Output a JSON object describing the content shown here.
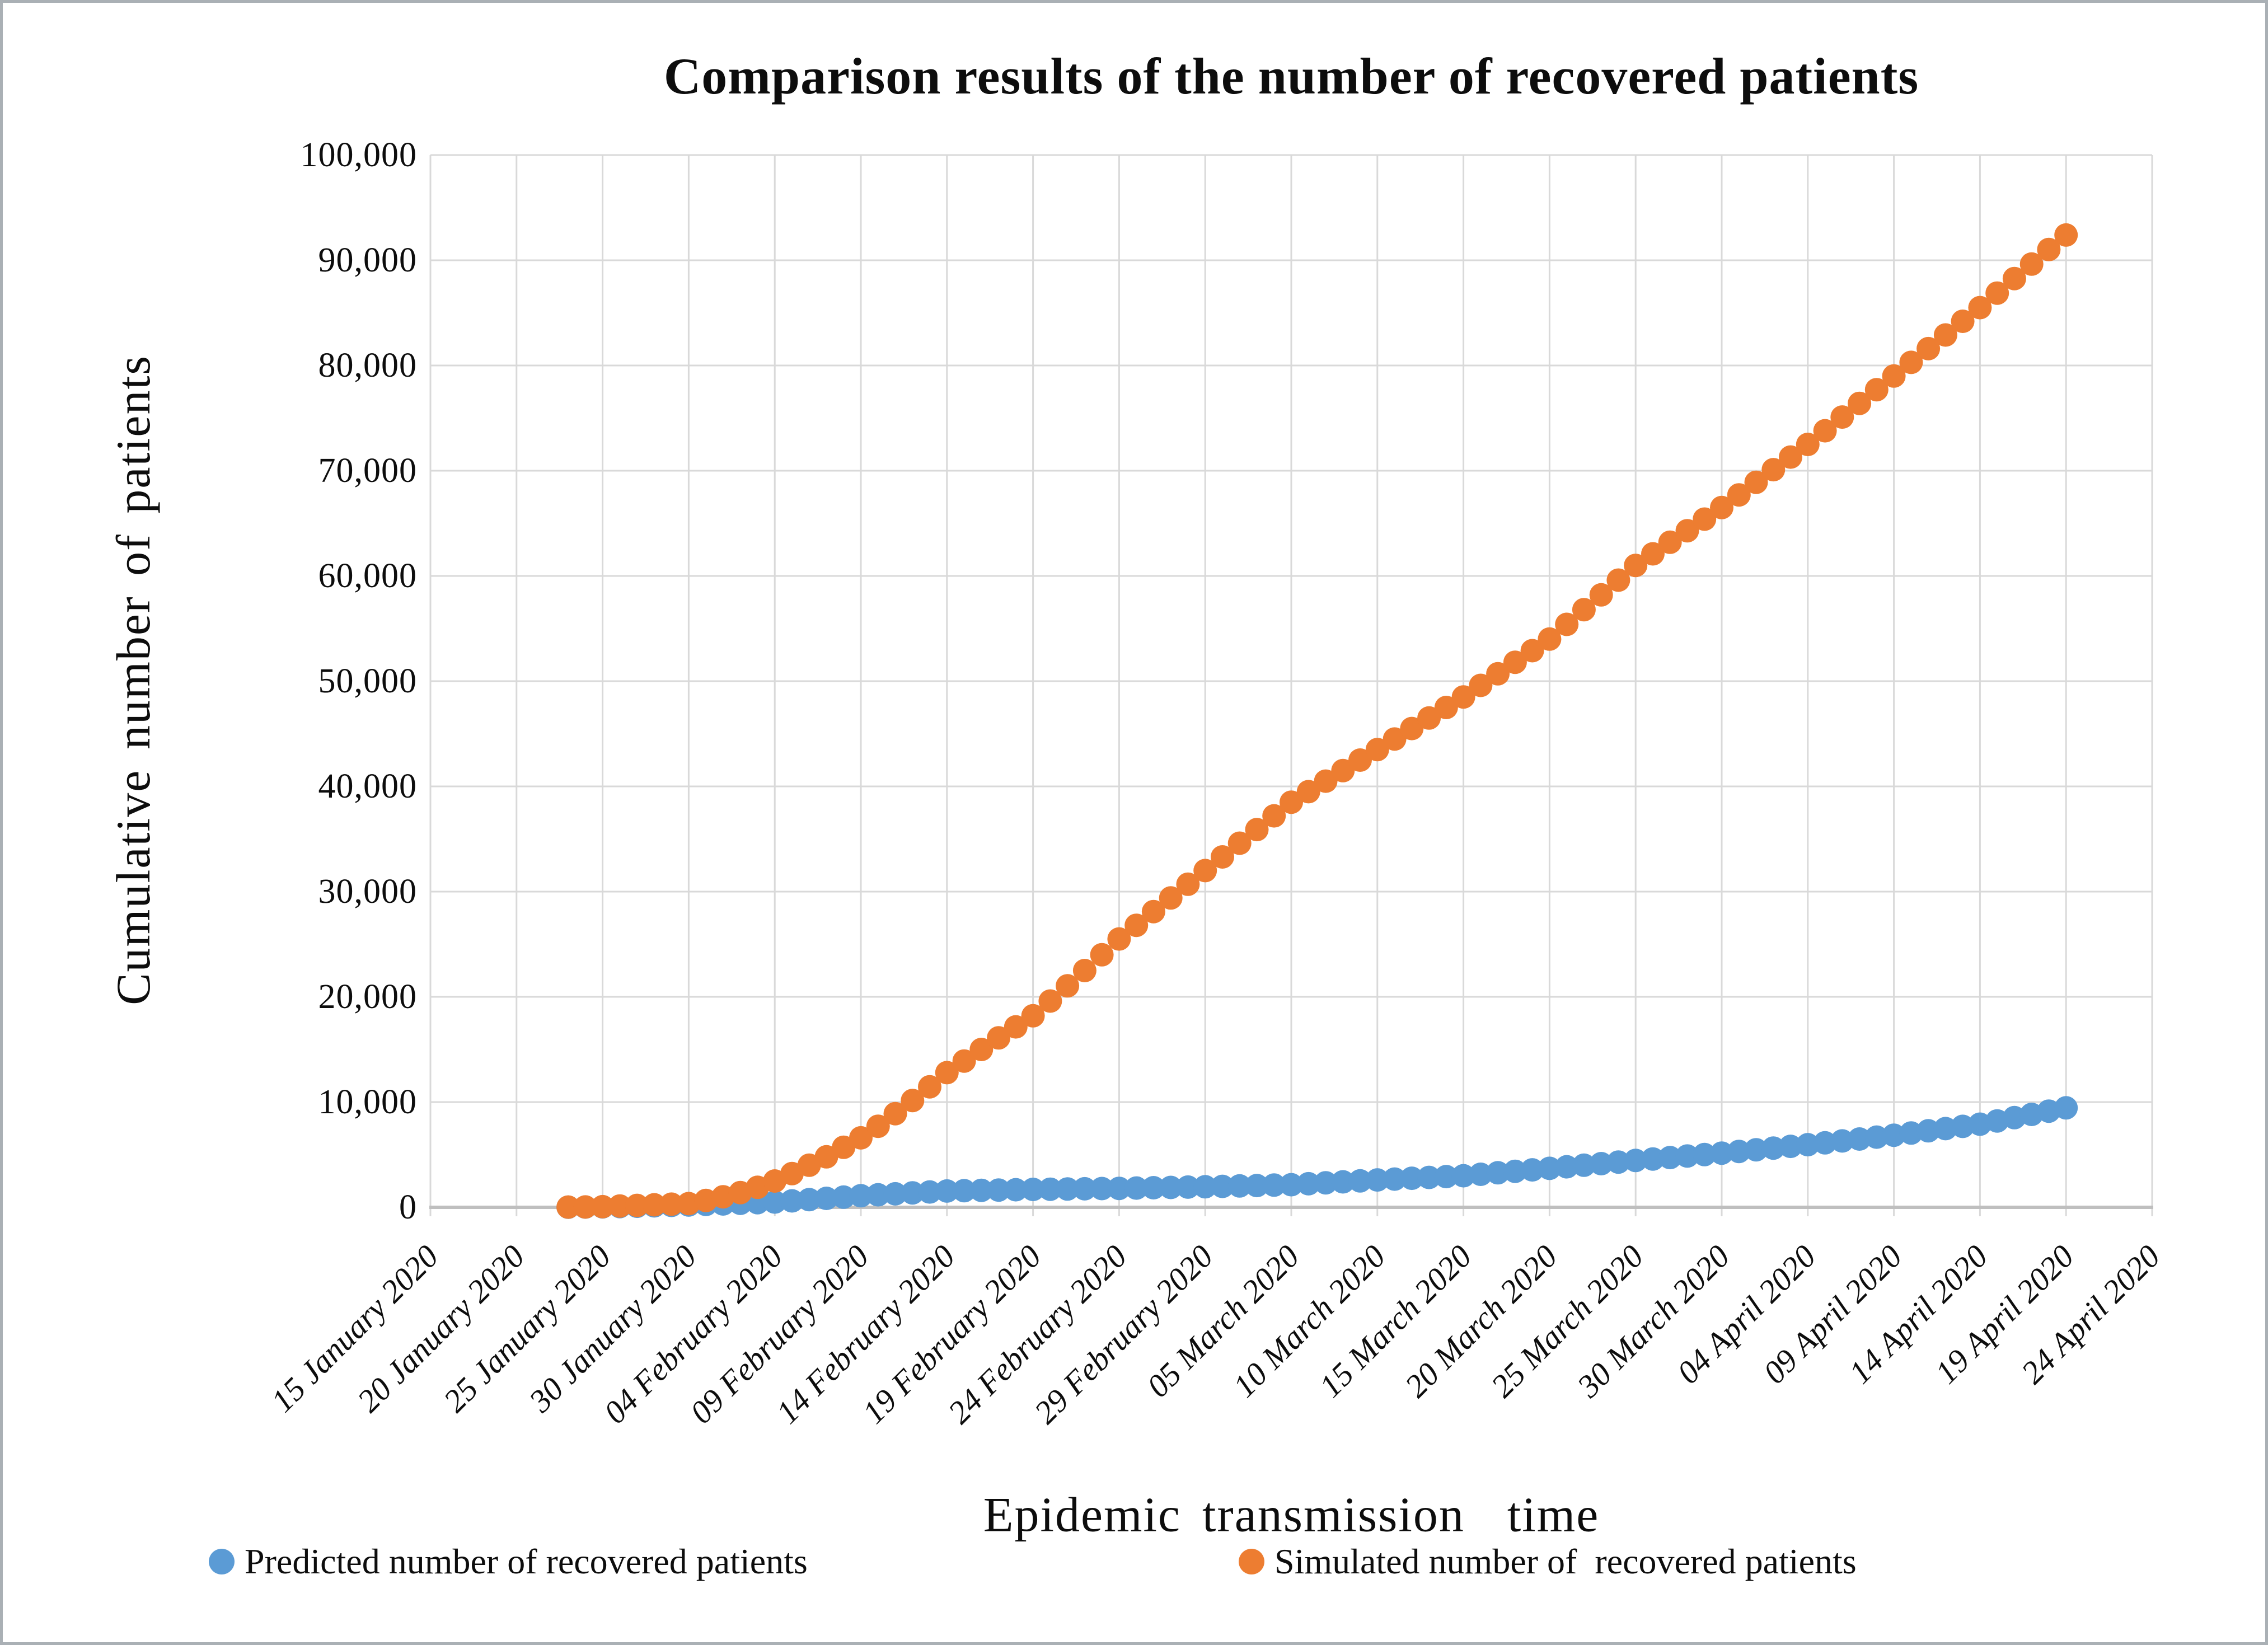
{
  "figure": {
    "title": "Comparison results of the number of recovered patients",
    "x_axis_title": "Epidemic transmission  time",
    "y_axis_title": "Cumulative number of patients"
  },
  "colors": {
    "predicted_blue": "#5B9BD5",
    "simulated_orange": "#ED7D31",
    "gridline": "#D9D9D9",
    "axis_line": "#BFBFBF",
    "text": "#0d0d0d"
  },
  "chart_data": {
    "type": "scatter",
    "title": "Comparison results of the number of recovered patients",
    "xlabel": "Epidemic transmission time",
    "ylabel": "Cumulative number of patients",
    "ylim": [
      0,
      100000
    ],
    "grid": true,
    "legend_position": "bottom",
    "marker": "circle",
    "y_tick_labels": [
      "0",
      "10,000",
      "20,000",
      "30,000",
      "40,000",
      "50,000",
      "60,000",
      "70,000",
      "80,000",
      "90,000",
      "100,000"
    ],
    "x_tick_labels": [
      "15 January 2020",
      "20 January 2020",
      "25 January 2020",
      "30 January 2020",
      "04 February 2020",
      "09 February 2020",
      "14 February 2020",
      "19 February 2020",
      "24 February 2020",
      "29 February 2020",
      "05 March 2020",
      "10 March 2020",
      "15 March 2020",
      "20 March 2020",
      "25 March 2020",
      "30 March 2020",
      "04 April 2020",
      "09 April 2020",
      "14 April 2020",
      "19 April 2020",
      "24 April 2020"
    ],
    "x_tick_interval_days": 5,
    "data_start_offset_days": 8,
    "x_dates": [
      "01-23",
      "01-24",
      "01-25",
      "01-26",
      "01-27",
      "01-28",
      "01-29",
      "01-30",
      "01-31",
      "02-01",
      "02-02",
      "02-03",
      "02-04",
      "02-05",
      "02-06",
      "02-07",
      "02-08",
      "02-09",
      "02-10",
      "02-11",
      "02-12",
      "02-13",
      "02-14",
      "02-15",
      "02-16",
      "02-17",
      "02-18",
      "02-19",
      "02-20",
      "02-21",
      "02-22",
      "02-23",
      "02-24",
      "02-25",
      "02-26",
      "02-27",
      "02-28",
      "02-29",
      "03-01",
      "03-02",
      "03-03",
      "03-04",
      "03-05",
      "03-06",
      "03-07",
      "03-08",
      "03-09",
      "03-10",
      "03-11",
      "03-12",
      "03-13",
      "03-14",
      "03-15",
      "03-16",
      "03-17",
      "03-18",
      "03-19",
      "03-20",
      "03-21",
      "03-22",
      "03-23",
      "03-24",
      "03-25",
      "03-26",
      "03-27",
      "03-28",
      "03-29",
      "03-30",
      "03-31",
      "04-01",
      "04-02",
      "04-03",
      "04-04",
      "04-05",
      "04-06",
      "04-07",
      "04-08",
      "04-09",
      "04-10",
      "04-11",
      "04-12",
      "04-13",
      "04-14",
      "04-15",
      "04-16",
      "04-17",
      "04-18",
      "04-19"
    ],
    "series": [
      {
        "name": "Predicted number of recovered patients",
        "color": "#5B9BD5",
        "values": [
          10,
          20,
          40,
          70,
          100,
          140,
          180,
          220,
          270,
          320,
          380,
          440,
          500,
          610,
          730,
          850,
          970,
          1100,
          1190,
          1280,
          1370,
          1460,
          1550,
          1580,
          1610,
          1640,
          1670,
          1700,
          1720,
          1740,
          1760,
          1780,
          1800,
          1830,
          1860,
          1890,
          1920,
          1950,
          1990,
          2030,
          2070,
          2110,
          2150,
          2240,
          2330,
          2420,
          2510,
          2600,
          2680,
          2760,
          2840,
          2920,
          3000,
          3140,
          3280,
          3420,
          3560,
          3700,
          3850,
          4000,
          4150,
          4300,
          4450,
          4590,
          4730,
          4870,
          5010,
          5150,
          5310,
          5470,
          5630,
          5790,
          5950,
          6130,
          6310,
          6490,
          6670,
          6850,
          7060,
          7270,
          7480,
          7690,
          7900,
          8210,
          8520,
          8830,
          9140,
          9450
        ]
      },
      {
        "name": "Simulated number of  recovered patients",
        "color": "#ED7D31",
        "values": [
          20,
          30,
          60,
          120,
          180,
          240,
          300,
          350,
          650,
          1000,
          1400,
          1900,
          2500,
          3200,
          4000,
          4800,
          5700,
          6600,
          7700,
          8900,
          10150,
          11450,
          12800,
          13900,
          15000,
          16100,
          17150,
          18200,
          19600,
          21050,
          22500,
          24000,
          25500,
          26800,
          28100,
          29400,
          30700,
          32000,
          33300,
          34600,
          35900,
          37200,
          38500,
          39500,
          40500,
          41500,
          42500,
          43500,
          44500,
          45500,
          46500,
          47500,
          48500,
          49600,
          50700,
          51800,
          52900,
          54000,
          55400,
          56800,
          58200,
          59600,
          61000,
          62100,
          63200,
          64300,
          65400,
          66500,
          67700,
          68900,
          70100,
          71300,
          72500,
          73800,
          75100,
          76400,
          77700,
          79000,
          80300,
          81600,
          82900,
          84200,
          85500,
          86880,
          88260,
          89640,
          91020,
          92400
        ]
      }
    ]
  }
}
